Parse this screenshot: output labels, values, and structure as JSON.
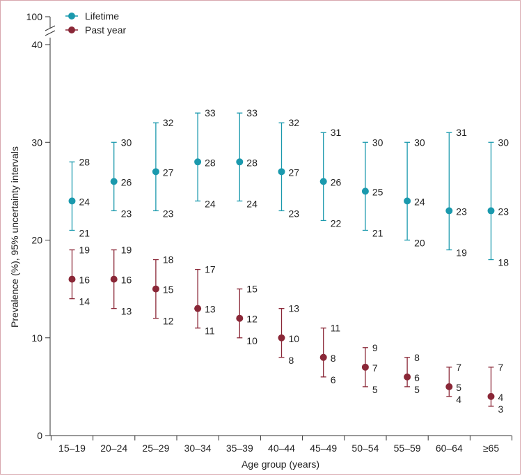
{
  "chart_data": {
    "type": "scatter",
    "xlabel": "Age group (years)",
    "ylabel": "Prevalence (%), 95% uncertainty intervals",
    "categories": [
      "15–19",
      "20–24",
      "25–29",
      "30–34",
      "35–39",
      "40–44",
      "45–49",
      "50–54",
      "55–59",
      "60–64",
      "≥65"
    ],
    "y_ticks": [
      "0",
      "10",
      "20",
      "30",
      "40"
    ],
    "y_break_label": "100",
    "ylim": [
      0,
      40
    ],
    "legend_position": "top-left",
    "series": [
      {
        "name": "Lifetime",
        "color": "#1a99ad",
        "values": [
          24,
          26,
          27,
          28,
          28,
          27,
          26,
          25,
          24,
          23,
          23
        ],
        "upper": [
          28,
          30,
          32,
          33,
          33,
          32,
          31,
          30,
          30,
          31,
          30
        ],
        "lower": [
          21,
          23,
          23,
          24,
          24,
          23,
          22,
          21,
          20,
          19,
          18
        ]
      },
      {
        "name": "Past year",
        "color": "#8a2737",
        "values": [
          16,
          16,
          15,
          13,
          12,
          10,
          8,
          7,
          6,
          5,
          4
        ],
        "upper": [
          19,
          19,
          18,
          17,
          15,
          13,
          11,
          9,
          8,
          7,
          7
        ],
        "lower": [
          14,
          13,
          12,
          11,
          10,
          8,
          6,
          5,
          5,
          4,
          3
        ]
      }
    ]
  }
}
